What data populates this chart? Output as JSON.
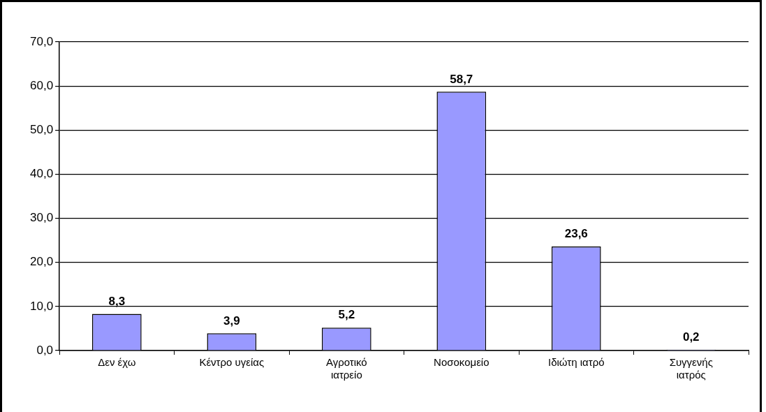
{
  "chart_data": {
    "type": "bar",
    "categories": [
      "Δεν έχω",
      "Κέντρο υγείας",
      "Αγροτικό ιατρείο",
      "Νοσοκομείο",
      "Ιδιώτη ιατρό",
      "Συγγενής ιατρός"
    ],
    "values": [
      8.3,
      3.9,
      5.2,
      58.7,
      23.6,
      0.2
    ],
    "value_labels": [
      "8,3",
      "3,9",
      "5,2",
      "58,7",
      "23,6",
      "0,2"
    ],
    "color": "#9999ff",
    "ylim": [
      0,
      70
    ],
    "yticks": [
      {
        "value": 0,
        "label": "0,0"
      },
      {
        "value": 10,
        "label": "10,0"
      },
      {
        "value": 20,
        "label": "20,0"
      },
      {
        "value": 30,
        "label": "30,0"
      },
      {
        "value": 40,
        "label": "40,0"
      },
      {
        "value": 50,
        "label": "50,0"
      },
      {
        "value": 60,
        "label": "60,0"
      },
      {
        "value": 70,
        "label": "70,0"
      }
    ],
    "grid": "y",
    "legend": false
  }
}
